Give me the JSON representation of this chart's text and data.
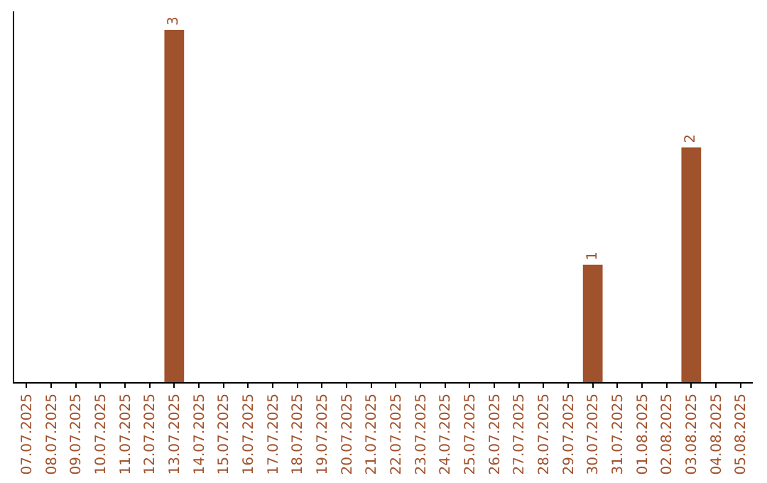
{
  "chart_data": {
    "type": "bar",
    "categories": [
      "07.07.2025",
      "08.07.2025",
      "09.07.2025",
      "10.07.2025",
      "11.07.2025",
      "12.07.2025",
      "13.07.2025",
      "14.07.2025",
      "15.07.2025",
      "16.07.2025",
      "17.07.2025",
      "18.07.2025",
      "19.07.2025",
      "20.07.2025",
      "21.07.2025",
      "22.07.2025",
      "23.07.2025",
      "24.07.2025",
      "25.07.2025",
      "26.07.2025",
      "27.07.2025",
      "28.07.2025",
      "29.07.2025",
      "30.07.2025",
      "31.07.2025",
      "01.08.2025",
      "02.08.2025",
      "03.08.2025",
      "04.08.2025",
      "05.08.2025"
    ],
    "values": [
      null,
      null,
      null,
      null,
      null,
      null,
      3,
      null,
      null,
      null,
      null,
      null,
      null,
      null,
      null,
      null,
      null,
      null,
      null,
      null,
      null,
      null,
      null,
      1,
      null,
      null,
      null,
      2,
      null,
      null
    ],
    "color": "#a0522d",
    "data_labels": true,
    "tick_labels": "x"
  }
}
